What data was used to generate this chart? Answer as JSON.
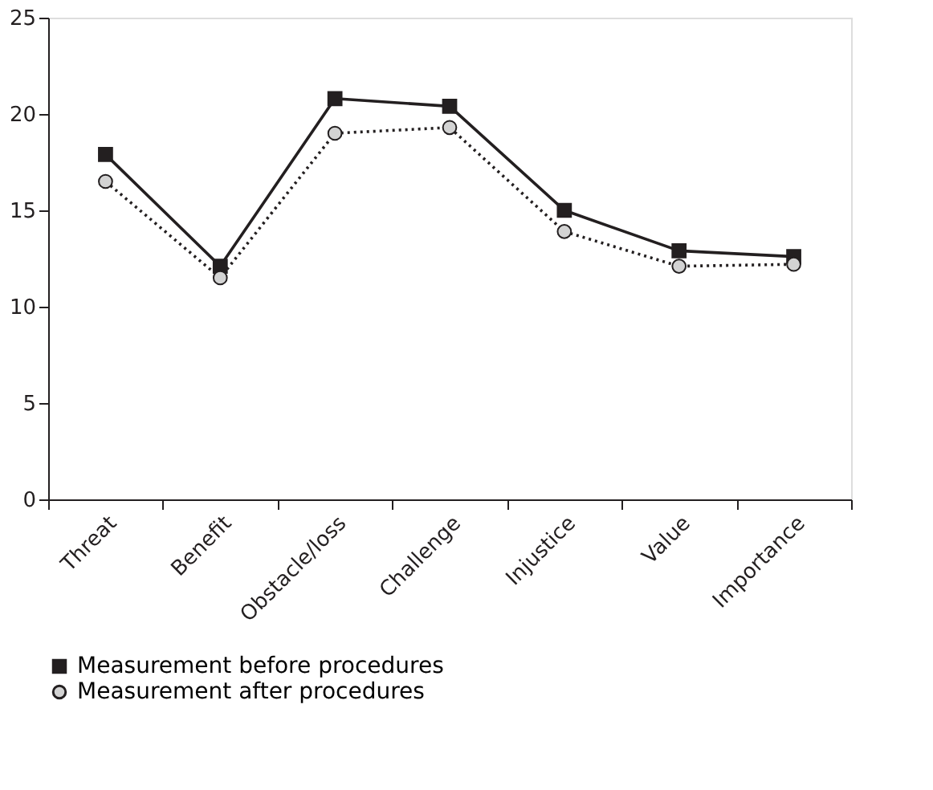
{
  "chart_data": {
    "type": "line",
    "categories": [
      "Threat",
      "Benefit",
      "Obstacle/loss",
      "Challenge",
      "Injustice",
      "Value",
      "Importance"
    ],
    "series": [
      {
        "name": "Measurement before procedures",
        "color": "#231f20",
        "marker": "square",
        "line_style": "solid",
        "values": [
          17.9,
          12.1,
          20.8,
          20.4,
          15.0,
          12.9,
          12.6
        ]
      },
      {
        "name": "Measurement after procedures",
        "color": "#231f20",
        "marker": "circle",
        "line_style": "dotted",
        "values": [
          16.5,
          11.5,
          19.0,
          19.3,
          13.9,
          12.1,
          12.2
        ]
      }
    ],
    "ylim": [
      0,
      25
    ],
    "yticks": [
      0,
      5,
      10,
      15,
      20,
      25
    ],
    "grid": false,
    "legend": "bottom"
  }
}
